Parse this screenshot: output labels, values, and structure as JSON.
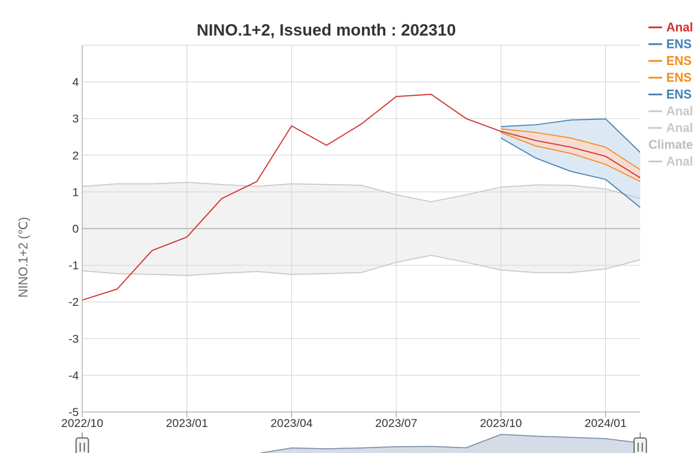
{
  "chart_data": {
    "type": "line",
    "title": "NINO.1+2, Issued month : 202310",
    "xlabel": "",
    "ylabel": "NINO.1+2 (℃)",
    "ylim": [
      -5,
      5
    ],
    "yticks": [
      "4",
      "3",
      "2",
      "1",
      "0",
      "-1",
      "-2",
      "-3",
      "-4",
      "-5"
    ],
    "xticks": [
      "2022/10",
      "2023/01",
      "2023/04",
      "2023/07",
      "2023/10",
      "2024/01"
    ],
    "months": [
      "2022/10",
      "2022/11",
      "2022/12",
      "2023/01",
      "2023/02",
      "2023/03",
      "2023/04",
      "2023/05",
      "2023/06",
      "2023/07",
      "2023/08",
      "2023/09",
      "2023/10",
      "2023/11",
      "2023/12",
      "2024/01",
      "2024/02"
    ],
    "grid": true,
    "legend_position": "right",
    "colors": {
      "analysis": "#d32f2f",
      "ens_blue": "#3f7fb5",
      "ens_orange": "#f28c1a",
      "grey": "#c8c8c8",
      "climate_text": "#bdbdbd",
      "band_fill": "#f2f2f2",
      "ens_outer_fill": "#dce9f5",
      "ens_inner_fill": "#f6dcd2"
    },
    "legend": [
      {
        "label": "Anal",
        "color_key": "analysis",
        "marker": "line"
      },
      {
        "label": "ENS",
        "color_key": "ens_blue",
        "marker": "line"
      },
      {
        "label": "ENS",
        "color_key": "ens_orange",
        "marker": "line"
      },
      {
        "label": "ENS",
        "color_key": "ens_orange",
        "marker": "line"
      },
      {
        "label": "ENS",
        "color_key": "ens_blue",
        "marker": "line"
      },
      {
        "label": "Anal",
        "color_key": "grey",
        "marker": "line"
      },
      {
        "label": "Anal",
        "color_key": "grey",
        "marker": "line"
      },
      {
        "label": "Climate",
        "color_key": "climate_text",
        "marker": "none"
      },
      {
        "label": "Anal",
        "color_key": "grey",
        "marker": "line"
      }
    ],
    "series": [
      {
        "key": "analysis",
        "color_key": "analysis",
        "values": [
          -1.95,
          -1.65,
          -0.6,
          -0.23,
          0.82,
          1.28,
          2.8,
          2.27,
          2.85,
          3.6,
          3.66,
          3.0,
          2.65,
          2.4,
          2.22,
          1.97,
          1.38
        ]
      },
      {
        "key": "climate_upper",
        "color_key": "grey",
        "values": [
          1.15,
          1.22,
          1.22,
          1.26,
          1.2,
          1.15,
          1.22,
          1.2,
          1.18,
          0.92,
          0.73,
          0.92,
          1.13,
          1.19,
          1.18,
          1.08,
          0.82
        ]
      },
      {
        "key": "climate_lower",
        "color_key": "grey",
        "values": [
          -1.15,
          -1.23,
          -1.25,
          -1.28,
          -1.22,
          -1.17,
          -1.25,
          -1.23,
          -1.2,
          -0.92,
          -0.73,
          -0.92,
          -1.13,
          -1.2,
          -1.2,
          -1.1,
          -0.85
        ]
      },
      {
        "key": "ens_blue_upper",
        "color_key": "ens_blue",
        "values": [
          null,
          null,
          null,
          null,
          null,
          null,
          null,
          null,
          null,
          null,
          null,
          null,
          2.78,
          2.83,
          2.96,
          2.99,
          2.07
        ]
      },
      {
        "key": "ens_blue_lower",
        "color_key": "ens_blue",
        "values": [
          null,
          null,
          null,
          null,
          null,
          null,
          null,
          null,
          null,
          null,
          null,
          null,
          2.47,
          1.92,
          1.56,
          1.34,
          0.57
        ]
      },
      {
        "key": "ens_orange_upper",
        "color_key": "ens_orange",
        "values": [
          null,
          null,
          null,
          null,
          null,
          null,
          null,
          null,
          null,
          null,
          null,
          null,
          2.72,
          2.62,
          2.47,
          2.22,
          1.6
        ]
      },
      {
        "key": "ens_orange_lower",
        "color_key": "ens_orange",
        "values": [
          null,
          null,
          null,
          null,
          null,
          null,
          null,
          null,
          null,
          null,
          null,
          null,
          2.62,
          2.25,
          2.05,
          1.75,
          1.28
        ]
      }
    ],
    "navigator": {
      "values": [
        null,
        null,
        null,
        null,
        null,
        null,
        0.6,
        0.5,
        0.6,
        0.75,
        0.78,
        0.62,
        2.2,
        2.0,
        1.85,
        1.7,
        1.2
      ],
      "line_color": "#7f8fa6",
      "fill_color": "#d5dce8"
    }
  }
}
